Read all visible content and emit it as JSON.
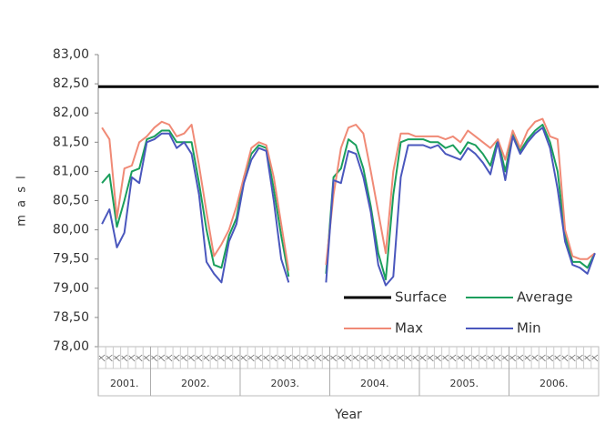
{
  "chart_data": {
    "type": "line",
    "y_label": "m a s l",
    "x_label": "Year",
    "ylim": [
      78,
      83
    ],
    "yticks": [
      {
        "value": 78,
        "label": "78,00"
      },
      {
        "value": 78.5,
        "label": "78,50"
      },
      {
        "value": 79,
        "label": "79,00"
      },
      {
        "value": 79.5,
        "label": "79,50"
      },
      {
        "value": 80,
        "label": "80,00"
      },
      {
        "value": 80.5,
        "label": "80,50"
      },
      {
        "value": 81,
        "label": "81,00"
      },
      {
        "value": 81.5,
        "label": "81,50"
      },
      {
        "value": 82,
        "label": "82,00"
      },
      {
        "value": 82.5,
        "label": "82,50"
      },
      {
        "value": 83,
        "label": "83,00"
      }
    ],
    "grid": false,
    "categories": [
      null,
      null,
      null,
      null,
      null,
      null,
      null,
      null,
      null,
      null,
      null,
      null,
      null,
      null,
      null,
      null,
      null,
      null,
      null,
      null,
      null,
      null,
      null,
      null,
      null,
      null,
      null,
      null,
      null,
      null,
      null,
      null,
      null,
      null,
      null,
      null,
      null,
      null,
      null,
      null,
      null,
      null,
      null,
      null,
      null,
      null,
      null,
      null,
      null,
      null,
      null,
      null,
      null,
      null,
      null,
      null,
      null,
      null,
      null,
      null,
      null,
      null,
      null,
      null,
      null,
      null,
      null
    ],
    "year_groups": [
      {
        "label": "2001.",
        "months": 7
      },
      {
        "label": "2002.",
        "months": 12
      },
      {
        "label": "2003.",
        "months": 12
      },
      {
        "label": "2004.",
        "months": 12
      },
      {
        "label": "2005.",
        "months": 12
      },
      {
        "label": "2006.",
        "months": 12
      }
    ],
    "reference_line": {
      "name": "Surface",
      "value": 82.45,
      "color": "#000000"
    },
    "series": [
      {
        "name": "Average",
        "color": "#1a9e5c",
        "values": [
          80.8,
          80.95,
          80.05,
          80.5,
          81.0,
          81.05,
          81.55,
          81.6,
          81.7,
          81.7,
          81.5,
          81.5,
          81.5,
          80.8,
          80.0,
          79.4,
          79.35,
          79.9,
          80.2,
          80.9,
          81.3,
          81.45,
          81.4,
          80.7,
          79.9,
          79.2,
          null,
          null,
          null,
          null,
          79.25,
          80.9,
          81.05,
          81.55,
          81.45,
          81.05,
          80.4,
          79.6,
          79.15,
          80.6,
          81.5,
          81.55,
          81.55,
          81.55,
          81.5,
          81.5,
          81.4,
          81.45,
          81.3,
          81.5,
          81.45,
          81.3,
          81.1,
          81.55,
          81.0,
          81.65,
          81.35,
          81.55,
          81.7,
          81.8,
          81.5,
          81.0,
          79.9,
          79.45,
          79.45,
          79.35,
          79.6
        ]
      },
      {
        "name": "Max",
        "color": "#f08a76",
        "values": [
          81.75,
          81.55,
          80.2,
          81.05,
          81.1,
          81.5,
          81.6,
          81.75,
          81.85,
          81.8,
          81.6,
          81.65,
          81.8,
          81.1,
          80.3,
          79.55,
          79.75,
          80.0,
          80.4,
          80.9,
          81.4,
          81.5,
          81.45,
          80.9,
          80.1,
          79.3,
          null,
          null,
          null,
          null,
          79.4,
          80.6,
          81.4,
          81.75,
          81.8,
          81.65,
          81.0,
          80.3,
          79.6,
          81.0,
          81.65,
          81.65,
          81.6,
          81.6,
          81.6,
          81.6,
          81.55,
          81.6,
          81.5,
          81.7,
          81.6,
          81.5,
          81.4,
          81.55,
          81.2,
          81.7,
          81.4,
          81.7,
          81.85,
          81.9,
          81.6,
          81.55,
          80.0,
          79.55,
          79.5,
          79.5,
          79.6
        ]
      },
      {
        "name": "Min",
        "color": "#4a57bd",
        "values": [
          80.1,
          80.35,
          79.7,
          79.95,
          80.9,
          80.8,
          81.5,
          81.55,
          81.65,
          81.65,
          81.4,
          81.5,
          81.3,
          80.6,
          79.45,
          79.25,
          79.1,
          79.8,
          80.1,
          80.8,
          81.2,
          81.4,
          81.35,
          80.5,
          79.5,
          79.1,
          null,
          null,
          null,
          null,
          79.1,
          80.85,
          80.8,
          81.35,
          81.3,
          80.9,
          80.3,
          79.4,
          79.05,
          79.2,
          80.9,
          81.45,
          81.45,
          81.45,
          81.4,
          81.45,
          81.3,
          81.25,
          81.2,
          81.4,
          81.3,
          81.15,
          80.95,
          81.5,
          80.85,
          81.6,
          81.3,
          81.5,
          81.65,
          81.75,
          81.4,
          80.7,
          79.8,
          79.4,
          79.35,
          79.25,
          79.6
        ]
      }
    ]
  }
}
